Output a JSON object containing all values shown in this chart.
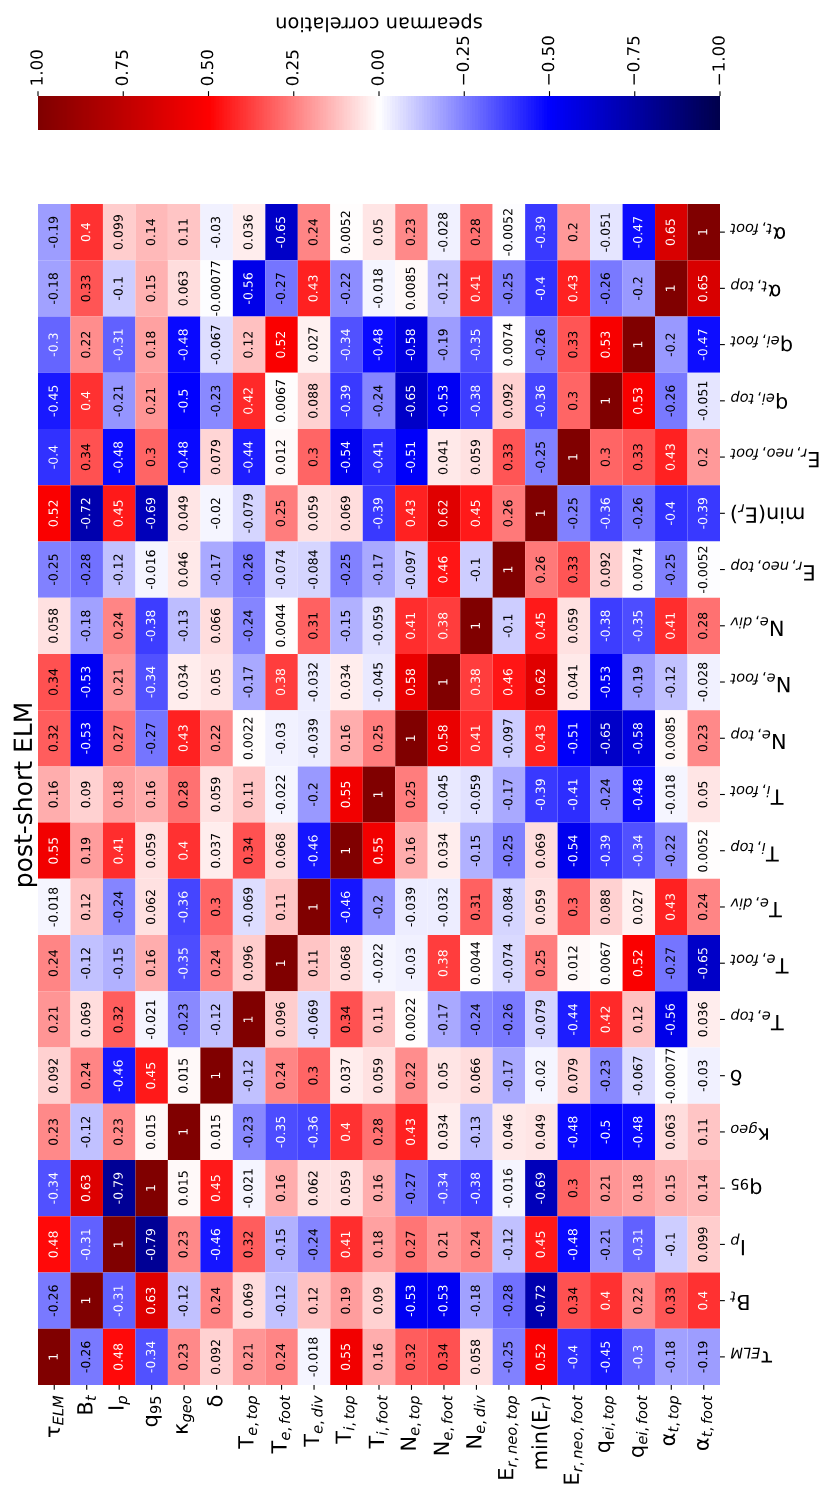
{
  "chart_data": {
    "type": "heatmap",
    "title": "post-short ELM",
    "clabel": "spearman correlation",
    "categories": [
      "τ$_{ELM}$",
      "B$_{t}$",
      "I$_{p}$",
      "q$_{95}$",
      "κ$_{geo}$",
      "δ",
      "T$_{e,top}$",
      "T$_{e,foot}$",
      "T$_{e,div}$",
      "T$_{i,top}$",
      "T$_{i,foot}$",
      "N$_{e,top}$",
      "N$_{e,foot}$",
      "N$_{e,div}$",
      "E$_{r,neo,top}$",
      "min(E$_{r}$)",
      "E$_{r,neo,foot}$",
      "q$_{ei,top}$",
      "q$_{ei,foot}$",
      "α$_{t,top}$",
      "α$_{t,foot}$"
    ],
    "y_categories": [
      "α$_{t,foot}$",
      "α$_{t,top}$",
      "q$_{ei,foot}$",
      "q$_{ei,top}$",
      "E$_{r,neo,foot}$",
      "min(E$_{r}$)",
      "E$_{r,neo,top}$",
      "N$_{e,div}$",
      "N$_{e,foot}$",
      "N$_{e,top}$",
      "T$_{i,foot}$",
      "T$_{i,top}$",
      "T$_{e,div}$",
      "T$_{e,foot}$",
      "T$_{e,top}$",
      "δ",
      "κ$_{geo}$",
      "q$_{95}$",
      "I$_{p}$",
      "B$_{t}$",
      "τ$_{ELM}$"
    ],
    "cells": [
      [
        -0.19,
        0.4,
        0.099,
        0.14,
        0.11,
        -0.03,
        0.036,
        -0.65,
        0.24,
        0.0052,
        0.05,
        0.23,
        -0.028,
        0.28,
        -0.0052,
        -0.39,
        0.2,
        -0.051,
        -0.47,
        0.65,
        1
      ],
      [
        -0.18,
        0.33,
        -0.1,
        0.15,
        0.063,
        -0.00077,
        -0.56,
        -0.27,
        0.43,
        -0.22,
        -0.018,
        0.0085,
        -0.12,
        0.41,
        -0.25,
        -0.4,
        0.43,
        -0.26,
        -0.2,
        1,
        0.65
      ],
      [
        -0.3,
        0.22,
        -0.31,
        0.18,
        -0.48,
        -0.067,
        0.12,
        0.52,
        0.027,
        -0.34,
        -0.48,
        -0.58,
        -0.19,
        -0.35,
        0.0074,
        -0.26,
        0.33,
        0.53,
        1,
        -0.2,
        -0.47
      ],
      [
        -0.45,
        0.4,
        -0.21,
        0.21,
        -0.5,
        -0.23,
        0.42,
        0.0067,
        0.088,
        -0.39,
        -0.24,
        -0.65,
        -0.53,
        -0.38,
        0.092,
        -0.36,
        0.3,
        1,
        0.53,
        -0.26,
        -0.051
      ],
      [
        -0.4,
        0.34,
        -0.48,
        0.3,
        -0.48,
        0.079,
        -0.44,
        0.012,
        0.3,
        -0.54,
        -0.41,
        -0.51,
        0.041,
        0.059,
        0.33,
        -0.25,
        1,
        0.3,
        0.33,
        0.43,
        0.2
      ],
      [
        0.52,
        -0.72,
        0.45,
        -0.69,
        0.049,
        -0.02,
        -0.079,
        0.25,
        0.059,
        0.069,
        -0.39,
        0.43,
        0.62,
        0.45,
        0.26,
        1,
        -0.25,
        -0.36,
        -0.26,
        -0.4,
        -0.39
      ],
      [
        -0.25,
        -0.28,
        -0.12,
        -0.016,
        0.046,
        -0.17,
        -0.26,
        -0.074,
        -0.084,
        -0.25,
        -0.17,
        -0.097,
        0.46,
        -0.1,
        1,
        0.26,
        0.33,
        0.092,
        0.0074,
        -0.25,
        -0.0052
      ],
      [
        0.058,
        -0.18,
        0.24,
        -0.38,
        -0.13,
        0.066,
        -0.24,
        0.0044,
        0.31,
        -0.15,
        -0.059,
        0.41,
        0.38,
        1,
        -0.1,
        0.45,
        0.059,
        -0.38,
        -0.35,
        0.41,
        0.28
      ],
      [
        0.34,
        -0.53,
        0.21,
        -0.34,
        0.034,
        0.05,
        -0.17,
        0.38,
        -0.032,
        0.034,
        -0.045,
        0.58,
        1,
        0.38,
        0.46,
        0.62,
        0.041,
        -0.53,
        -0.19,
        -0.12,
        -0.028
      ],
      [
        0.32,
        -0.53,
        0.27,
        -0.27,
        0.43,
        0.22,
        0.0022,
        -0.03,
        -0.039,
        0.16,
        0.25,
        1,
        0.58,
        0.41,
        -0.097,
        0.43,
        -0.51,
        -0.65,
        -0.58,
        0.0085,
        0.23
      ],
      [
        0.16,
        0.09,
        0.18,
        0.16,
        0.28,
        0.059,
        0.11,
        -0.022,
        -0.2,
        0.55,
        1,
        0.25,
        -0.045,
        -0.059,
        -0.17,
        -0.39,
        -0.41,
        -0.24,
        -0.48,
        -0.018,
        0.05
      ],
      [
        0.55,
        0.19,
        0.41,
        0.059,
        0.4,
        0.037,
        0.34,
        0.068,
        -0.46,
        1,
        0.55,
        0.16,
        0.034,
        -0.15,
        -0.25,
        0.069,
        -0.54,
        -0.39,
        -0.34,
        -0.22,
        0.0052
      ],
      [
        -0.018,
        0.12,
        -0.24,
        0.062,
        -0.36,
        0.3,
        -0.069,
        0.11,
        1,
        -0.46,
        -0.2,
        -0.039,
        -0.032,
        0.31,
        -0.084,
        0.059,
        0.3,
        0.088,
        0.027,
        0.43,
        0.24
      ],
      [
        0.24,
        -0.12,
        -0.15,
        0.16,
        -0.35,
        0.24,
        0.096,
        1,
        0.11,
        0.068,
        -0.022,
        -0.03,
        0.38,
        0.0044,
        -0.074,
        0.25,
        0.012,
        0.0067,
        0.52,
        -0.27,
        -0.65
      ],
      [
        0.21,
        0.069,
        0.32,
        -0.021,
        -0.23,
        -0.12,
        1,
        0.096,
        -0.069,
        0.34,
        0.11,
        0.0022,
        -0.17,
        -0.24,
        -0.26,
        -0.079,
        -0.44,
        0.42,
        0.12,
        -0.56,
        0.036
      ],
      [
        0.092,
        0.24,
        -0.46,
        0.45,
        0.015,
        1,
        -0.12,
        0.24,
        0.3,
        0.037,
        0.059,
        0.22,
        0.05,
        0.066,
        -0.17,
        -0.02,
        0.079,
        -0.23,
        -0.067,
        -0.00077,
        -0.03
      ],
      [
        0.23,
        -0.12,
        0.23,
        0.015,
        1,
        0.015,
        -0.23,
        -0.35,
        -0.36,
        0.4,
        0.28,
        0.43,
        0.034,
        -0.13,
        0.046,
        0.049,
        -0.48,
        -0.5,
        -0.48,
        0.063,
        0.11
      ],
      [
        -0.34,
        0.63,
        -0.79,
        1,
        0.015,
        0.45,
        -0.021,
        0.16,
        0.062,
        0.059,
        0.16,
        -0.27,
        -0.34,
        -0.38,
        -0.016,
        -0.69,
        0.3,
        0.21,
        0.18,
        0.15,
        0.14
      ],
      [
        0.48,
        -0.31,
        1,
        -0.79,
        0.23,
        -0.46,
        0.32,
        -0.15,
        -0.24,
        0.41,
        0.18,
        0.27,
        0.21,
        0.24,
        -0.12,
        0.45,
        -0.48,
        -0.21,
        -0.31,
        -0.1,
        0.099
      ],
      [
        -0.26,
        1,
        -0.31,
        0.63,
        -0.12,
        0.24,
        0.069,
        -0.12,
        0.12,
        0.19,
        0.09,
        -0.53,
        -0.53,
        -0.18,
        -0.28,
        -0.72,
        0.34,
        0.4,
        0.22,
        0.33,
        0.4
      ],
      [
        1,
        -0.26,
        0.48,
        -0.34,
        0.23,
        0.092,
        0.21,
        0.24,
        -0.018,
        0.55,
        0.16,
        0.32,
        0.34,
        0.058,
        -0.25,
        0.52,
        -0.4,
        -0.45,
        -0.3,
        -0.18,
        -0.19
      ]
    ],
    "data_labels": true,
    "clim": [
      1,
      -1
    ],
    "cticks": [
      {
        "value": 1,
        "label": "1.00"
      },
      {
        "value": 0.75,
        "label": "0.75"
      },
      {
        "value": 0.5,
        "label": "0.50"
      },
      {
        "value": 0.25,
        "label": "0.25"
      },
      {
        "value": 0,
        "label": "0.00"
      },
      {
        "value": -0.25,
        "label": "−0.25"
      },
      {
        "value": -0.5,
        "label": "−0.50"
      },
      {
        "value": -0.75,
        "label": "−0.75"
      },
      {
        "value": -1,
        "label": "−1.00"
      }
    ]
  }
}
